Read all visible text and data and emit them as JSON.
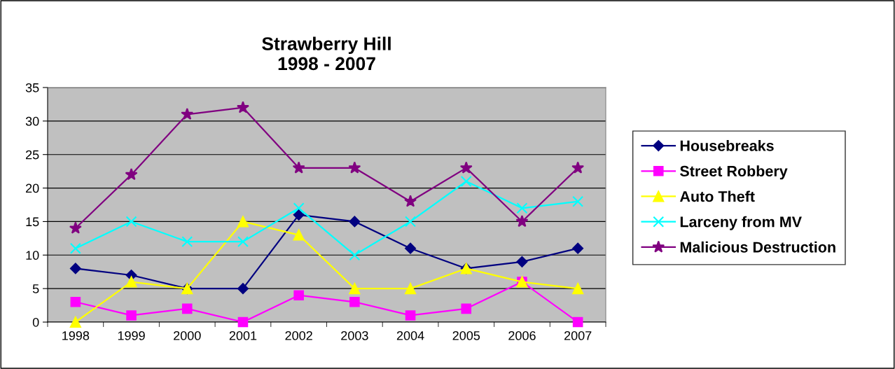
{
  "chart_data": {
    "type": "line",
    "title": "Strawberry Hill\n1998 - 2007",
    "categories": [
      "1998",
      "1999",
      "2000",
      "2001",
      "2002",
      "2003",
      "2004",
      "2005",
      "2006",
      "2007"
    ],
    "ylim": [
      0,
      35
    ],
    "yticks": [
      0,
      5,
      10,
      15,
      20,
      25,
      30,
      35
    ],
    "grid": "y",
    "legend": "right",
    "series": [
      {
        "name": "Housebreaks",
        "color": "#000080",
        "marker": "diamond",
        "values": [
          8,
          7,
          5,
          5,
          16,
          15,
          11,
          8,
          9,
          11
        ]
      },
      {
        "name": "Street Robbery",
        "color": "#ff00ff",
        "marker": "square",
        "values": [
          3,
          1,
          2,
          0,
          4,
          3,
          1,
          2,
          6,
          0
        ]
      },
      {
        "name": "Auto Theft",
        "color": "#ffff00",
        "marker": "triangle",
        "values": [
          0,
          6,
          5,
          15,
          13,
          5,
          5,
          8,
          6,
          5
        ]
      },
      {
        "name": "Larceny from MV",
        "color": "#00ffff",
        "marker": "cross",
        "values": [
          11,
          15,
          12,
          12,
          17,
          10,
          15,
          21,
          17,
          18
        ]
      },
      {
        "name": "Malicious Destruction",
        "color": "#800080",
        "marker": "star",
        "values": [
          14,
          22,
          31,
          32,
          23,
          23,
          18,
          23,
          15,
          23
        ]
      }
    ]
  }
}
